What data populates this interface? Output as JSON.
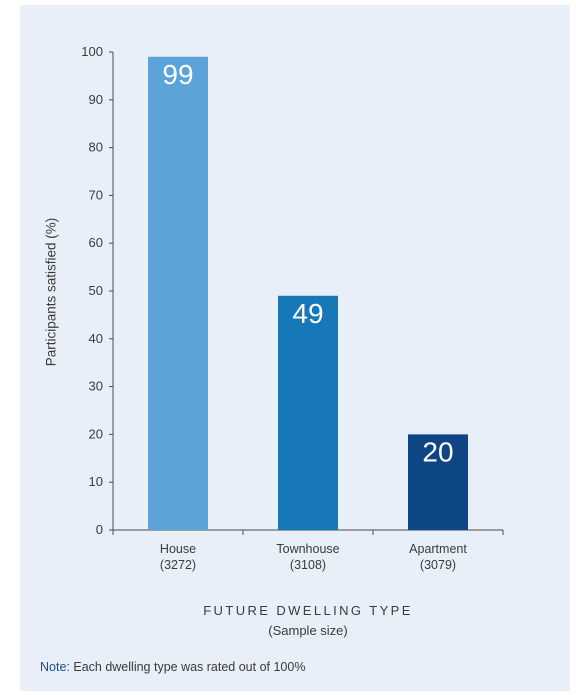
{
  "chart_data": {
    "type": "bar",
    "categories": [
      "House",
      "Townhouse",
      "Apartment"
    ],
    "sample_sizes": [
      "(3272)",
      "(3108)",
      "(3079)"
    ],
    "values": [
      99,
      49,
      20
    ],
    "data_labels": [
      "99",
      "49",
      "20"
    ],
    "colors": [
      "#5ba3d9",
      "#1778b8",
      "#0d4585"
    ],
    "ylabel": "Participants satisfied (%)",
    "xlabel": "FUTURE DWELLING TYPE",
    "xlabel_sub": "(Sample size)",
    "ylim": [
      0,
      100
    ],
    "yticks": [
      0,
      10,
      20,
      30,
      40,
      50,
      60,
      70,
      80,
      90,
      100
    ],
    "grid": false,
    "legend": "none"
  },
  "note": {
    "prefix": "Note:",
    "text": " Each dwelling type was rated out of 100%"
  },
  "colors": {
    "panel_background": "#e8eff8",
    "axis": "#4a4a4a",
    "text": "#3b3b3b",
    "note_prefix": "#1a4f8c"
  }
}
